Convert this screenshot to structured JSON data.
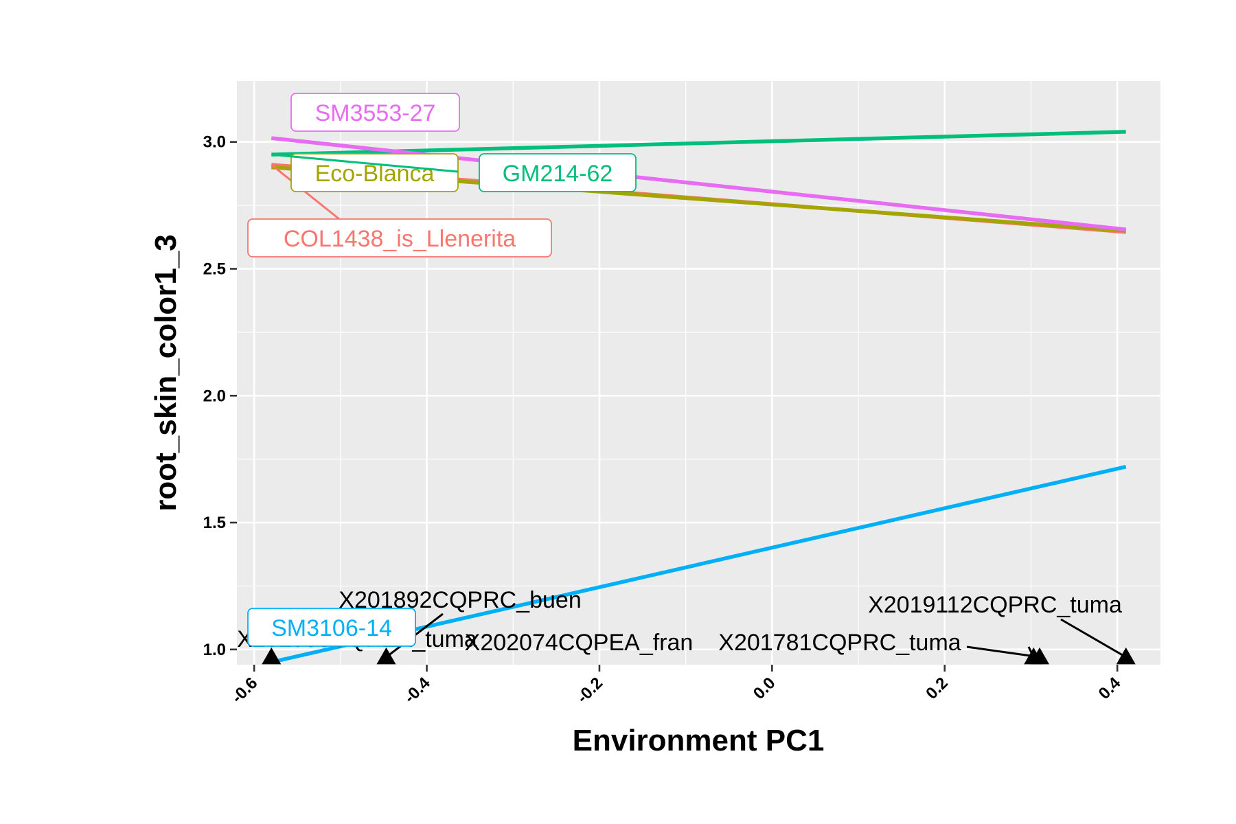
{
  "chart_data": {
    "type": "line",
    "title": "",
    "xlabel": "Environment PC1",
    "ylabel": "root_skin_color1_3",
    "xlim": [
      -0.62,
      0.45
    ],
    "ylim": [
      0.94,
      3.24
    ],
    "x_ticks": [
      -0.6,
      -0.4,
      -0.2,
      0.0,
      0.2,
      0.4
    ],
    "x_tick_labels": [
      "-0.6",
      "-0.4",
      "-0.2",
      "0.0",
      "0.2",
      "0.4"
    ],
    "y_ticks": [
      1.0,
      1.5,
      2.0,
      2.5,
      3.0
    ],
    "y_tick_labels": [
      "1.0",
      "1.5",
      "2.0",
      "2.5",
      "3.0"
    ],
    "grid": true,
    "legend": "none",
    "series": [
      {
        "name": "COL1438_is_Llenerita",
        "color": "#F8766D",
        "x": [
          -0.58,
          0.41
        ],
        "y": [
          2.91,
          2.645
        ]
      },
      {
        "name": "Eco-Blanca",
        "color": "#A3A500",
        "x": [
          -0.58,
          0.41
        ],
        "y": [
          2.9,
          2.65
        ]
      },
      {
        "name": "GM214-62",
        "color": "#00BF7D",
        "x": [
          -0.58,
          0.41
        ],
        "y": [
          2.95,
          3.04
        ]
      },
      {
        "name": "SM3553-27",
        "color": "#E76BF3",
        "x": [
          -0.58,
          0.41
        ],
        "y": [
          3.015,
          2.655
        ]
      },
      {
        "name": "SM3106-14",
        "color": "#00B0F6",
        "x": [
          -0.58,
          0.41
        ],
        "y": [
          0.95,
          1.72
        ]
      }
    ],
    "environment_points": [
      {
        "name": "X202083CQPEA_tuma",
        "x": -0.58,
        "y": 0.97
      },
      {
        "name": "X201892CQPRC_buen",
        "x": -0.447,
        "y": 0.97
      },
      {
        "name": "X202074CQPEA_fran",
        "x": 0.303,
        "y": 0.97
      },
      {
        "name": "X201781CQPRC_tuma",
        "x": 0.31,
        "y": 0.97
      },
      {
        "name": "X2019112CQPRC_tuma",
        "x": 0.41,
        "y": 0.97
      }
    ]
  }
}
